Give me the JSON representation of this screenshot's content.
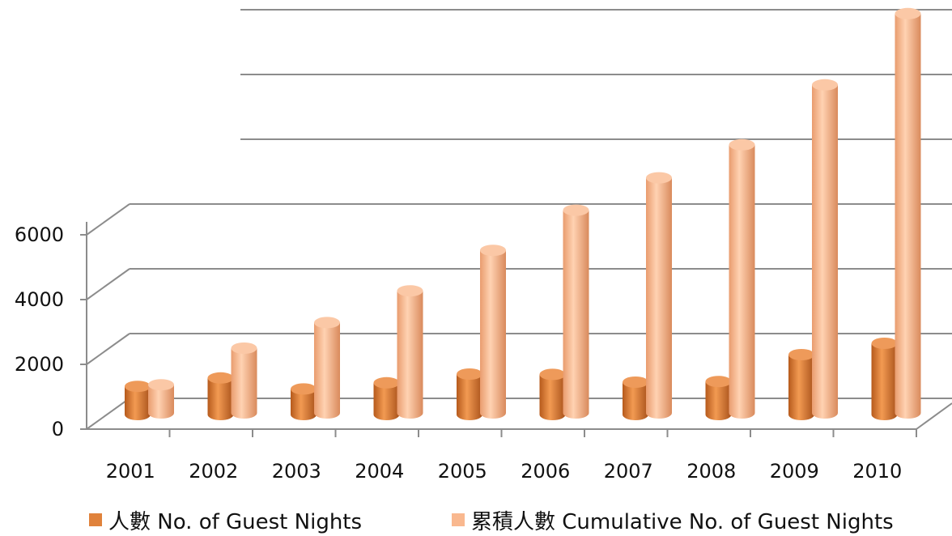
{
  "chart_data": {
    "type": "bar",
    "categories": [
      "2001",
      "2002",
      "2003",
      "2004",
      "2005",
      "2006",
      "2007",
      "2008",
      "2009",
      "2010"
    ],
    "series": [
      {
        "name": "人數 No. of Guest Nights",
        "values": [
          870,
          1130,
          790,
          980,
          1250,
          1240,
          1000,
          1020,
          1850,
          2200
        ],
        "color": "#E0823B"
      },
      {
        "name": "累積人數 Cumulative No. of Guest Nights",
        "values": [
          870,
          2000,
          2790,
          3770,
          5020,
          6260,
          7260,
          8280,
          10130,
          12330
        ],
        "color": "#F9B88F"
      }
    ],
    "yticks": [
      0,
      2000,
      4000,
      6000
    ],
    "ylim": [
      0,
      16000
    ],
    "grid": true,
    "legend_position": "bottom",
    "style": "3d-cylinder"
  }
}
